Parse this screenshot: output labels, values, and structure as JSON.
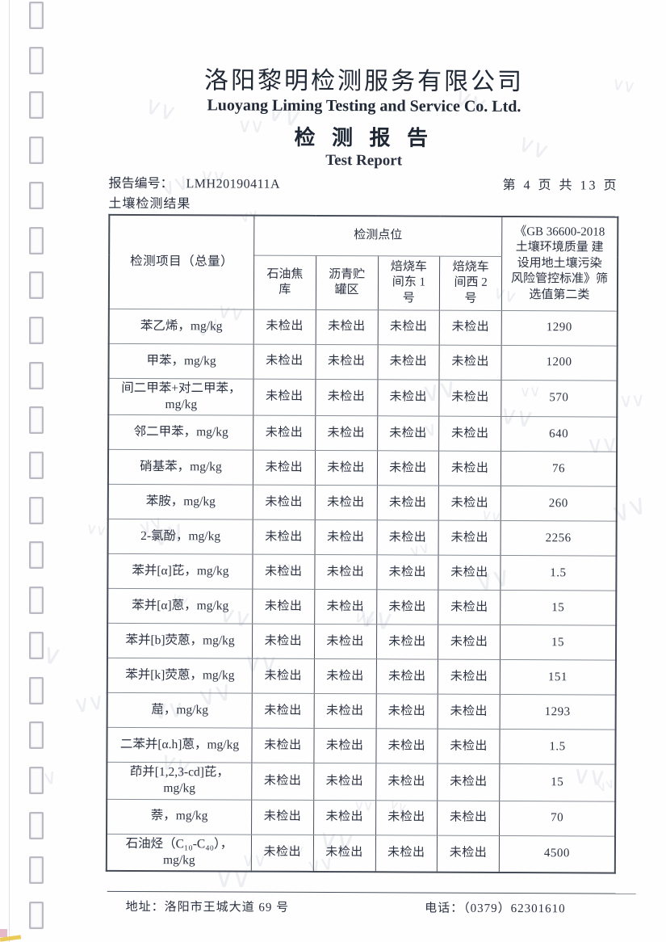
{
  "header": {
    "company_cn": "洛阳黎明检测服务有限公司",
    "company_en": "Luoyang Liming Testing and Service Co. Ltd.",
    "report_title_cn": "检 测 报 告",
    "report_title_en": "Test Report",
    "report_no_label": "报告编号：",
    "report_no": "LMH20190411A",
    "page_indicator": "第 4 页 共 13 页",
    "section_title": "土壤检测结果"
  },
  "table": {
    "item_header": "检测项目（总量）",
    "points_header": "检测点位",
    "points": [
      "石油焦\n库",
      "沥青贮\n罐区",
      "焙烧车\n间东 1\n号",
      "焙烧车\n间西 2\n号"
    ],
    "standard_header": "《GB 36600-2018\n土壤环境质量 建\n设用地土壤污染\n风险管控标准》筛\n选值第二类",
    "rows": [
      {
        "item": "苯乙烯，mg/kg",
        "values": [
          "未检出",
          "未检出",
          "未检出",
          "未检出"
        ],
        "limit": "1290"
      },
      {
        "item": "甲苯，mg/kg",
        "values": [
          "未检出",
          "未检出",
          "未检出",
          "未检出"
        ],
        "limit": "1200"
      },
      {
        "item": "间二甲苯+对二甲苯，\nmg/kg",
        "values": [
          "未检出",
          "未检出",
          "未检出",
          "未检出"
        ],
        "limit": "570"
      },
      {
        "item": "邻二甲苯，mg/kg",
        "values": [
          "未检出",
          "未检出",
          "未检出",
          "未检出"
        ],
        "limit": "640"
      },
      {
        "item": "硝基苯，mg/kg",
        "values": [
          "未检出",
          "未检出",
          "未检出",
          "未检出"
        ],
        "limit": "76"
      },
      {
        "item": "苯胺，mg/kg",
        "values": [
          "未检出",
          "未检出",
          "未检出",
          "未检出"
        ],
        "limit": "260"
      },
      {
        "item": "2-氯酚，mg/kg",
        "values": [
          "未检出",
          "未检出",
          "未检出",
          "未检出"
        ],
        "limit": "2256"
      },
      {
        "item": "苯并[α]芘，mg/kg",
        "values": [
          "未检出",
          "未检出",
          "未检出",
          "未检出"
        ],
        "limit": "1.5"
      },
      {
        "item": "苯并[α]蒽，mg/kg",
        "values": [
          "未检出",
          "未检出",
          "未检出",
          "未检出"
        ],
        "limit": "15"
      },
      {
        "item": "苯并[b]荧蒽，mg/kg",
        "values": [
          "未检出",
          "未检出",
          "未检出",
          "未检出"
        ],
        "limit": "15"
      },
      {
        "item": "苯并[k]荧蒽，mg/kg",
        "values": [
          "未检出",
          "未检出",
          "未检出",
          "未检出"
        ],
        "limit": "151"
      },
      {
        "item": "䓛，mg/kg",
        "values": [
          "未检出",
          "未检出",
          "未检出",
          "未检出"
        ],
        "limit": "1293"
      },
      {
        "item": "二苯并[α.h]蒽，mg/kg",
        "values": [
          "未检出",
          "未检出",
          "未检出",
          "未检出"
        ],
        "limit": "1.5"
      },
      {
        "item": "茚并[1,2,3-cd]芘，\nmg/kg",
        "values": [
          "未检出",
          "未检出",
          "未检出",
          "未检出"
        ],
        "limit": "15"
      },
      {
        "item": "萘，mg/kg",
        "values": [
          "未检出",
          "未检出",
          "未检出",
          "未检出"
        ],
        "limit": "70"
      },
      {
        "item": "石油烃（C₁₀-C₄₀），\nmg/kg",
        "values": [
          "未检出",
          "未检出",
          "未检出",
          "未检出"
        ],
        "limit": "4500"
      }
    ]
  },
  "footer": {
    "address": "地址：洛阳市王城大道 69 号",
    "phone": "电话：（0379）62301610"
  }
}
